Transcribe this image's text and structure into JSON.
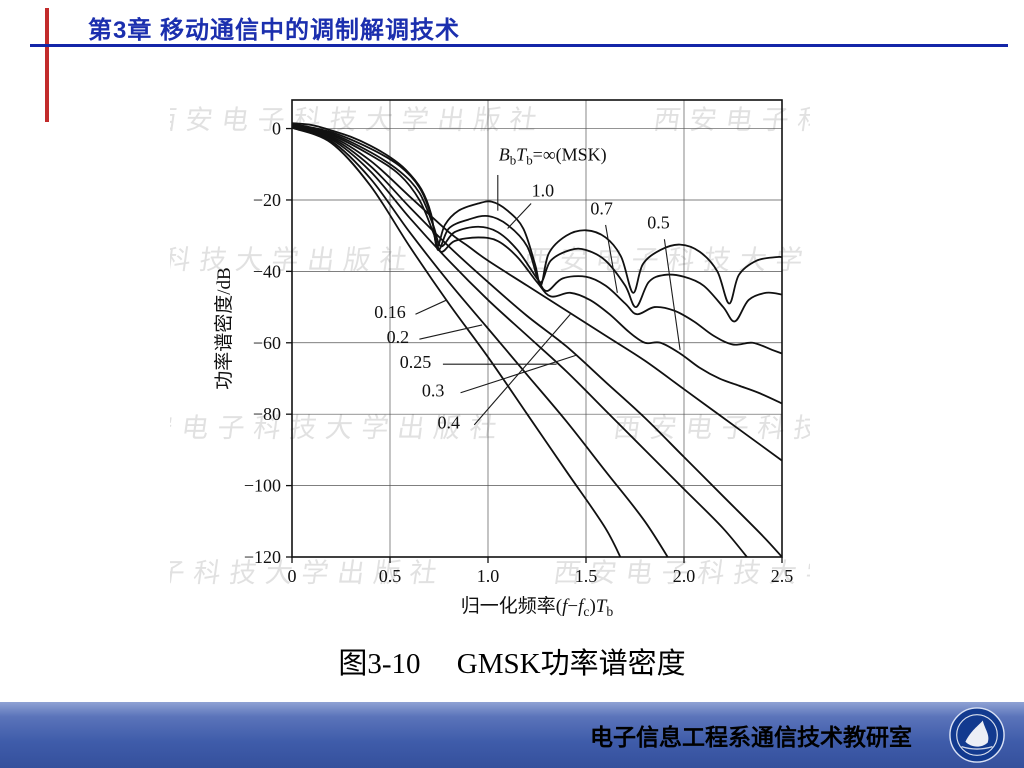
{
  "header": {
    "title": "第3章  移动通信中的调制解调技术",
    "accent_color": "#1b2fae",
    "red_bar_color": "#c22b2b"
  },
  "watermark": {
    "text": "西安电子科技大学出版社",
    "row_text": "西安电子科技大学出版社　　　西安电子科技大学出版社"
  },
  "caption": "图3-10　 GMSK功率谱密度",
  "footer": {
    "text": "电子信息工程系通信技术教研室",
    "bar_color": "#3f5caa",
    "logo": "university-seal"
  },
  "chart_data": {
    "type": "line",
    "title": "GMSK功率谱密度",
    "ylabel": "功率谱密度/dB",
    "xlabel_segments": [
      {
        "t": "归一化频率("
      },
      {
        "t": "f",
        "italic": true
      },
      {
        "t": "−"
      },
      {
        "t": "f",
        "italic": true
      },
      {
        "t": "c",
        "sub": true
      },
      {
        "t": ")"
      },
      {
        "t": "T",
        "italic": true
      },
      {
        "t": "b",
        "sub": true
      }
    ],
    "xlim": [
      0,
      2.5
    ],
    "ylim": [
      -120,
      8
    ],
    "xticks": [
      0,
      0.5,
      1.0,
      1.5,
      2.0,
      2.5
    ],
    "xtick_labels": [
      "0",
      "0.5",
      "1.0",
      "1.5",
      "2.0",
      "2.5"
    ],
    "yticks": [
      0,
      -20,
      -40,
      -60,
      -80,
      -100,
      -120
    ],
    "ytick_labels": [
      "0",
      "−20",
      "−40",
      "−60",
      "−80",
      "−100",
      "−120"
    ],
    "grid": true,
    "legend_position": "none",
    "line_color": "#111111",
    "series": [
      {
        "name": "BbTb=∞ (MSK)",
        "points": [
          [
            0,
            1.5
          ],
          [
            0.1,
            1.0
          ],
          [
            0.2,
            -0.5
          ],
          [
            0.3,
            -2.3
          ],
          [
            0.4,
            -4.8
          ],
          [
            0.5,
            -8
          ],
          [
            0.58,
            -11.5
          ],
          [
            0.66,
            -17
          ],
          [
            0.71,
            -24
          ],
          [
            0.74,
            -33
          ],
          [
            0.78,
            -27
          ],
          [
            0.85,
            -23
          ],
          [
            0.95,
            -21
          ],
          [
            1.02,
            -20.5
          ],
          [
            1.1,
            -23
          ],
          [
            1.18,
            -28
          ],
          [
            1.24,
            -38
          ],
          [
            1.27,
            -44
          ],
          [
            1.31,
            -35
          ],
          [
            1.4,
            -30
          ],
          [
            1.5,
            -28.5
          ],
          [
            1.6,
            -30.5
          ],
          [
            1.68,
            -36
          ],
          [
            1.74,
            -46
          ],
          [
            1.79,
            -38
          ],
          [
            1.88,
            -34
          ],
          [
            1.98,
            -32.5
          ],
          [
            2.08,
            -34.5
          ],
          [
            2.17,
            -40
          ],
          [
            2.23,
            -49
          ],
          [
            2.28,
            -41
          ],
          [
            2.37,
            -37
          ],
          [
            2.47,
            -36
          ],
          [
            2.5,
            -36
          ]
        ]
      },
      {
        "name": "BbTb=1.0",
        "points": [
          [
            0,
            1.3
          ],
          [
            0.2,
            -1.0
          ],
          [
            0.4,
            -5.6
          ],
          [
            0.55,
            -10.5
          ],
          [
            0.65,
            -16.5
          ],
          [
            0.71,
            -24.5
          ],
          [
            0.745,
            -34
          ],
          [
            0.8,
            -28
          ],
          [
            0.9,
            -25.5
          ],
          [
            1.0,
            -24.5
          ],
          [
            1.1,
            -27
          ],
          [
            1.2,
            -33
          ],
          [
            1.265,
            -43
          ],
          [
            1.32,
            -37
          ],
          [
            1.42,
            -34
          ],
          [
            1.5,
            -34
          ],
          [
            1.6,
            -37
          ],
          [
            1.7,
            -44
          ],
          [
            1.755,
            -50
          ],
          [
            1.82,
            -43
          ],
          [
            1.9,
            -41
          ],
          [
            2.0,
            -41.5
          ],
          [
            2.1,
            -44
          ],
          [
            2.2,
            -50
          ],
          [
            2.26,
            -54
          ],
          [
            2.33,
            -48
          ],
          [
            2.42,
            -46
          ],
          [
            2.5,
            -46.5
          ]
        ]
      },
      {
        "name": "BbTb=0.7",
        "points": [
          [
            0,
            1.1
          ],
          [
            0.2,
            -1.4
          ],
          [
            0.4,
            -6.6
          ],
          [
            0.55,
            -12
          ],
          [
            0.65,
            -18
          ],
          [
            0.72,
            -27
          ],
          [
            0.76,
            -33
          ],
          [
            0.83,
            -29
          ],
          [
            0.95,
            -27.5
          ],
          [
            1.05,
            -29
          ],
          [
            1.15,
            -34
          ],
          [
            1.25,
            -42
          ],
          [
            1.3,
            -45.5
          ],
          [
            1.38,
            -42
          ],
          [
            1.5,
            -41.5
          ],
          [
            1.6,
            -44
          ],
          [
            1.7,
            -49
          ],
          [
            1.76,
            -52
          ],
          [
            1.85,
            -50
          ],
          [
            1.95,
            -51
          ],
          [
            2.05,
            -54
          ],
          [
            2.15,
            -58
          ],
          [
            2.25,
            -60.5
          ],
          [
            2.35,
            -60
          ],
          [
            2.45,
            -62
          ],
          [
            2.5,
            -63
          ]
        ]
      },
      {
        "name": "BbTb=0.5",
        "points": [
          [
            0,
            0.9
          ],
          [
            0.2,
            -1.8
          ],
          [
            0.4,
            -7.4
          ],
          [
            0.55,
            -13
          ],
          [
            0.65,
            -20
          ],
          [
            0.72,
            -29
          ],
          [
            0.76,
            -34.5
          ],
          [
            0.83,
            -31.5
          ],
          [
            0.95,
            -30.5
          ],
          [
            1.05,
            -31.5
          ],
          [
            1.15,
            -36
          ],
          [
            1.25,
            -43
          ],
          [
            1.32,
            -47
          ],
          [
            1.42,
            -46
          ],
          [
            1.52,
            -48
          ],
          [
            1.62,
            -52
          ],
          [
            1.72,
            -57
          ],
          [
            1.8,
            -60
          ],
          [
            1.88,
            -60
          ],
          [
            1.98,
            -63
          ],
          [
            2.08,
            -67
          ],
          [
            2.18,
            -70
          ],
          [
            2.28,
            -72
          ],
          [
            2.38,
            -74
          ],
          [
            2.5,
            -77
          ]
        ]
      },
      {
        "name": "BbTb=0.4",
        "points": [
          [
            0,
            0.7
          ],
          [
            0.2,
            -2.2
          ],
          [
            0.4,
            -9
          ],
          [
            0.6,
            -19
          ],
          [
            0.8,
            -29
          ],
          [
            0.9,
            -33
          ],
          [
            1.0,
            -37
          ],
          [
            1.2,
            -44
          ],
          [
            1.4,
            -51
          ],
          [
            1.6,
            -58
          ],
          [
            1.8,
            -65
          ],
          [
            2.0,
            -73
          ],
          [
            2.2,
            -81
          ],
          [
            2.4,
            -89
          ],
          [
            2.5,
            -93
          ]
        ]
      },
      {
        "name": "BbTb=0.3",
        "points": [
          [
            0,
            0.5
          ],
          [
            0.2,
            -2.6
          ],
          [
            0.4,
            -10.5
          ],
          [
            0.6,
            -22
          ],
          [
            0.8,
            -33
          ],
          [
            1.0,
            -43
          ],
          [
            1.2,
            -52.5
          ],
          [
            1.4,
            -61
          ],
          [
            1.6,
            -71
          ],
          [
            1.8,
            -81
          ],
          [
            2.0,
            -92
          ],
          [
            2.2,
            -103
          ],
          [
            2.4,
            -114
          ],
          [
            2.5,
            -120
          ]
        ]
      },
      {
        "name": "BbTb=0.25",
        "points": [
          [
            0,
            0.4
          ],
          [
            0.2,
            -3
          ],
          [
            0.4,
            -12
          ],
          [
            0.6,
            -25
          ],
          [
            0.8,
            -37
          ],
          [
            1.0,
            -48
          ],
          [
            1.2,
            -58
          ],
          [
            1.4,
            -68
          ],
          [
            1.6,
            -79
          ],
          [
            1.8,
            -90
          ],
          [
            2.0,
            -101
          ],
          [
            2.2,
            -112
          ],
          [
            2.35,
            -122
          ]
        ]
      },
      {
        "name": "BbTb=0.2",
        "points": [
          [
            0,
            0.3
          ],
          [
            0.2,
            -3.5
          ],
          [
            0.4,
            -14
          ],
          [
            0.6,
            -29
          ],
          [
            0.8,
            -43
          ],
          [
            1.0,
            -56
          ],
          [
            1.2,
            -69
          ],
          [
            1.4,
            -82
          ],
          [
            1.6,
            -96
          ],
          [
            1.8,
            -110
          ],
          [
            1.95,
            -123
          ]
        ]
      },
      {
        "name": "BbTb=0.16",
        "points": [
          [
            0,
            0.2
          ],
          [
            0.2,
            -4
          ],
          [
            0.4,
            -16
          ],
          [
            0.6,
            -33
          ],
          [
            0.8,
            -49
          ],
          [
            1.0,
            -64
          ],
          [
            1.2,
            -80
          ],
          [
            1.4,
            -96
          ],
          [
            1.6,
            -112
          ],
          [
            1.7,
            -123
          ]
        ]
      }
    ],
    "annotations": [
      {
        "segments": [
          {
            "t": "B",
            "italic": true
          },
          {
            "t": "b",
            "sub": true
          },
          {
            "t": "T",
            "italic": true
          },
          {
            "t": "b",
            "sub": true
          },
          {
            "t": "=∞(MSK)"
          }
        ],
        "x": 1.33,
        "y": -9,
        "leader": [
          [
            1.05,
            -13
          ],
          [
            1.05,
            -23
          ]
        ]
      },
      {
        "text": "1.0",
        "x": 1.28,
        "y": -19,
        "leader": [
          [
            1.22,
            -21
          ],
          [
            1.1,
            -28
          ]
        ]
      },
      {
        "text": "0.7",
        "x": 1.58,
        "y": -24,
        "leader": [
          [
            1.6,
            -27
          ],
          [
            1.66,
            -46
          ]
        ]
      },
      {
        "text": "0.5",
        "x": 1.87,
        "y": -28,
        "leader": [
          [
            1.9,
            -31
          ],
          [
            1.98,
            -62
          ]
        ]
      },
      {
        "text": "0.16",
        "x": 0.5,
        "y": -53,
        "leader": [
          [
            0.63,
            -52
          ],
          [
            0.79,
            -48
          ]
        ]
      },
      {
        "text": "0.2",
        "x": 0.54,
        "y": -60,
        "leader": [
          [
            0.65,
            -59
          ],
          [
            0.97,
            -55
          ]
        ]
      },
      {
        "text": "0.25",
        "x": 0.63,
        "y": -67,
        "leader": [
          [
            0.77,
            -66
          ],
          [
            1.35,
            -66
          ]
        ]
      },
      {
        "text": "0.3",
        "x": 0.72,
        "y": -75,
        "leader": [
          [
            0.86,
            -74
          ],
          [
            1.45,
            -63.5
          ]
        ]
      },
      {
        "text": "0.4",
        "x": 0.8,
        "y": -84,
        "leader": [
          [
            0.93,
            -83
          ],
          [
            1.42,
            -52
          ]
        ]
      }
    ]
  }
}
